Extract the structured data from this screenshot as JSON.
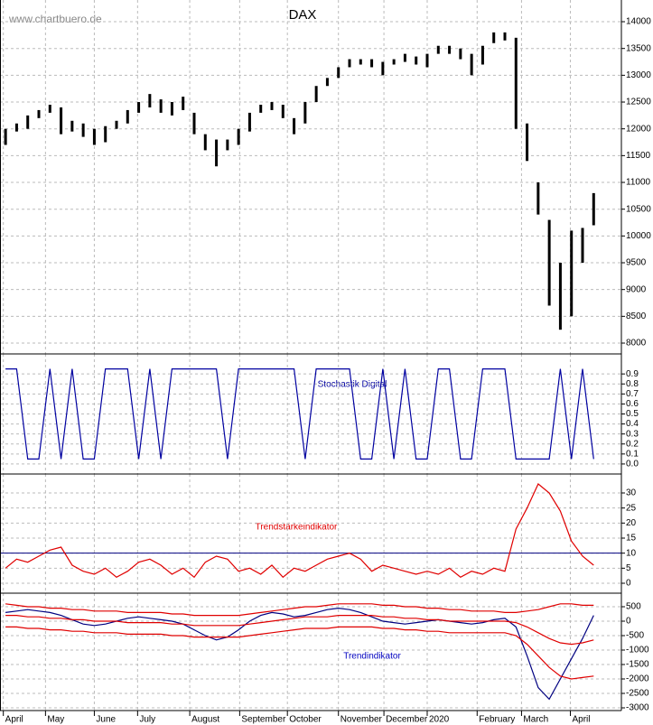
{
  "chart_data": [
    {
      "type": "range",
      "title": "DAX",
      "watermark": "www.chartbuero.de",
      "color": "#000000",
      "x": [
        0.5,
        1.5,
        2.5,
        3.5,
        4.5,
        5.5,
        6.5,
        7.5,
        8.5,
        9.5,
        10.5,
        11.5,
        12.5,
        13.5,
        14.5,
        15.5,
        16.5,
        17.5,
        18.5,
        19.5,
        20.5,
        21.5,
        22.5,
        23.5,
        24.5,
        25.5,
        26.5,
        27.5,
        28.5,
        29.5,
        30.5,
        31.5,
        32.5,
        33.5,
        34.5,
        35.5,
        36.5,
        37.5,
        38.5,
        39.5,
        40.5,
        41.5,
        42.5,
        43.5,
        44.5,
        45.5,
        46.5,
        47.5,
        48.5,
        49.5,
        50.5,
        51.5,
        52.5,
        53.5
      ],
      "low": [
        11700,
        11950,
        12000,
        12200,
        12300,
        11900,
        11950,
        11850,
        11700,
        11750,
        12000,
        12100,
        12300,
        12400,
        12300,
        12250,
        12350,
        11900,
        11600,
        11300,
        11600,
        11700,
        11950,
        12300,
        12350,
        12200,
        11900,
        12100,
        12500,
        12800,
        12950,
        13150,
        13200,
        13150,
        13000,
        13200,
        13250,
        13200,
        13150,
        13400,
        13400,
        13300,
        13000,
        13200,
        13600,
        13650,
        12000,
        11400,
        10400,
        8700,
        8250,
        8500,
        9500,
        10200
      ],
      "high": [
        12000,
        12100,
        12250,
        12350,
        12450,
        12400,
        12150,
        12100,
        12000,
        12050,
        12150,
        12350,
        12500,
        12650,
        12550,
        12500,
        12600,
        12300,
        11900,
        11800,
        11800,
        12000,
        12300,
        12450,
        12500,
        12450,
        12200,
        12500,
        12800,
        12950,
        13150,
        13300,
        13300,
        13300,
        13250,
        13300,
        13400,
        13350,
        13400,
        13550,
        13550,
        13500,
        13400,
        13550,
        13800,
        13800,
        13700,
        12100,
        11000,
        10300,
        9500,
        10100,
        10150,
        10800
      ],
      "ylim": [
        7798,
        14405
      ],
      "yticks": [
        8000,
        8500,
        9000,
        9500,
        10000,
        10500,
        11000,
        11500,
        12000,
        12500,
        13000,
        13500,
        14000
      ],
      "grid": true
    },
    {
      "type": "line",
      "title": "Stochastik Digital",
      "color": "#0000a0",
      "values": [
        0.95,
        0.95,
        0.05,
        0.05,
        0.95,
        0.05,
        0.95,
        0.05,
        0.05,
        0.95,
        0.95,
        0.95,
        0.05,
        0.95,
        0.05,
        0.95,
        0.95,
        0.95,
        0.95,
        0.95,
        0.05,
        0.95,
        0.95,
        0.95,
        0.95,
        0.95,
        0.95,
        0.05,
        0.95,
        0.95,
        0.95,
        0.95,
        0.05,
        0.05,
        0.95,
        0.05,
        0.95,
        0.05,
        0.05,
        0.95,
        0.95,
        0.05,
        0.05,
        0.95,
        0.95,
        0.95,
        0.05,
        0.05,
        0.05,
        0.05,
        0.95,
        0.05,
        0.95,
        0.05
      ],
      "ylim": [
        -0.1,
        1.1
      ],
      "yticks": [
        {
          "value": 0,
          "label": "0.0"
        },
        0.1,
        0.2,
        0.3,
        0.4,
        0.5,
        0.6,
        0.7,
        0.8,
        0.9
      ],
      "grid": true
    },
    {
      "type": "line",
      "title": "Trendstärkeindikator",
      "color": "#e00000",
      "hline": 10,
      "hline_color": "#000080",
      "values": [
        5,
        8,
        7,
        9,
        11,
        12,
        6,
        4,
        3,
        5,
        2,
        4,
        7,
        8,
        6,
        3,
        5,
        2,
        7,
        9,
        8,
        4,
        5,
        3,
        6,
        2,
        5,
        4,
        6,
        8,
        9,
        10,
        8,
        4,
        6,
        5,
        4,
        3,
        4,
        3,
        5,
        2,
        4,
        3,
        5,
        4,
        18,
        25,
        33,
        30,
        24,
        14,
        9,
        6
      ],
      "ylim": [
        -3.3,
        36.3
      ],
      "yticks": [
        0,
        5,
        10,
        15,
        20,
        25,
        30
      ],
      "grid": true
    },
    {
      "type": "line",
      "title": "Trendindikator",
      "series": [
        {
          "color": "#000080",
          "values": [
            300,
            350,
            400,
            350,
            300,
            200,
            50,
            -100,
            -150,
            -100,
            0,
            100,
            150,
            100,
            50,
            0,
            -100,
            -300,
            -500,
            -650,
            -550,
            -300,
            0,
            200,
            300,
            250,
            150,
            200,
            300,
            400,
            450,
            400,
            300,
            150,
            0,
            -50,
            -100,
            -50,
            0,
            50,
            0,
            -50,
            -100,
            -50,
            50,
            100,
            -200,
            -1200,
            -2300,
            -2700,
            -2000,
            -1300,
            -600,
            200
          ]
        },
        {
          "color": "#e00000",
          "values": [
            600,
            550,
            500,
            500,
            450,
            450,
            400,
            400,
            350,
            350,
            350,
            300,
            300,
            300,
            300,
            250,
            250,
            200,
            200,
            200,
            200,
            200,
            250,
            300,
            350,
            400,
            450,
            500,
            500,
            550,
            600,
            600,
            600,
            600,
            550,
            550,
            500,
            500,
            450,
            450,
            400,
            400,
            350,
            350,
            350,
            300,
            300,
            350,
            400,
            500,
            600,
            600,
            550,
            550
          ]
        },
        {
          "color": "#e00000",
          "values": [
            200,
            200,
            150,
            150,
            100,
            100,
            50,
            50,
            0,
            0,
            0,
            -50,
            -50,
            -50,
            -50,
            -100,
            -100,
            -150,
            -150,
            -150,
            -150,
            -150,
            -100,
            -50,
            0,
            50,
            100,
            150,
            150,
            150,
            200,
            200,
            200,
            200,
            150,
            150,
            100,
            100,
            50,
            50,
            0,
            0,
            0,
            0,
            0,
            0,
            -50,
            -200,
            -400,
            -600,
            -750,
            -800,
            -750,
            -650
          ]
        },
        {
          "color": "#e00000",
          "values": [
            -200,
            -200,
            -250,
            -250,
            -300,
            -300,
            -350,
            -350,
            -400,
            -400,
            -400,
            -450,
            -450,
            -450,
            -450,
            -500,
            -500,
            -550,
            -550,
            -550,
            -550,
            -550,
            -500,
            -450,
            -400,
            -350,
            -300,
            -250,
            -250,
            -250,
            -200,
            -200,
            -200,
            -200,
            -250,
            -250,
            -300,
            -300,
            -350,
            -350,
            -400,
            -400,
            -400,
            -400,
            -400,
            -400,
            -500,
            -800,
            -1200,
            -1600,
            -1900,
            -2000,
            -1950,
            -1900
          ]
        }
      ],
      "ylim": [
        -3094,
        969
      ],
      "yticks": [
        -3000,
        -2500,
        -2000,
        -1500,
        -1000,
        -500,
        0,
        500
      ],
      "grid": true,
      "xlim": [
        0,
        56
      ],
      "xticks": [
        {
          "value": 0.3,
          "label": "April"
        },
        {
          "value": 4.1,
          "label": "May"
        },
        {
          "value": 8.5,
          "label": "June"
        },
        {
          "value": 12.4,
          "label": "July"
        },
        {
          "value": 17.1,
          "label": "August"
        },
        {
          "value": 21.6,
          "label": "September"
        },
        {
          "value": 25.9,
          "label": "October"
        },
        {
          "value": 30.5,
          "label": "November"
        },
        {
          "value": 34.6,
          "label": "December"
        },
        {
          "value": 38.5,
          "label": "2020"
        },
        {
          "value": 43,
          "label": "February"
        },
        {
          "value": 47,
          "label": "March"
        },
        {
          "value": 51.4,
          "label": "April"
        }
      ]
    }
  ]
}
